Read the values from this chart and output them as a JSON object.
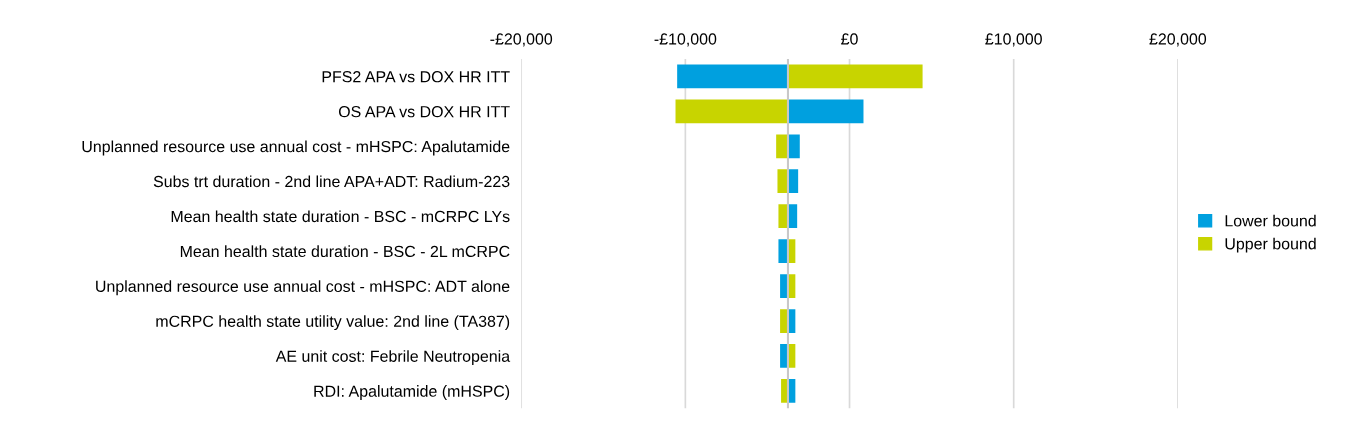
{
  "chart_data": {
    "type": "bar",
    "orientation": "horizontal",
    "categories": [
      "PFS2 APA vs DOX HR ITT",
      "OS APA vs DOX HR ITT",
      "Unplanned resource use annual cost - mHSPC: Apalutamide",
      "Subs trt duration - 2nd line APA+ADT: Radium-223",
      "Mean health state duration - BSC - mCRPC LYs",
      "Mean health state duration - BSC - 2L mCRPC",
      "Unplanned resource use annual cost - mHSPC: ADT alone",
      "mCRPC health state utility value: 2nd line (TA387)",
      "AE unit cost: Febrile Neutropenia",
      "RDI: Apalutamide (mHSPC)"
    ],
    "series": [
      {
        "name": "Lower bound",
        "color": "#00a0df",
        "base": [
          -3750,
          -3750,
          -3750,
          -3750,
          -3750,
          -3750,
          -3750,
          -3750,
          -3750,
          -3750
        ],
        "values": [
          -6750,
          4600,
          720,
          620,
          560,
          -580,
          -480,
          450,
          -480,
          450
        ]
      },
      {
        "name": "Upper bound",
        "color": "#c8d400",
        "base": [
          -3750,
          -3750,
          -3750,
          -3750,
          -3750,
          -3750,
          -3750,
          -3750,
          -3750,
          -3750
        ],
        "values": [
          8200,
          -6850,
          -720,
          -640,
          -580,
          450,
          450,
          -480,
          450,
          -420
        ]
      }
    ],
    "xlim": [
      -20000,
      20000
    ],
    "xticks": [
      {
        "value": -20000,
        "label": "-£20,000"
      },
      {
        "value": -10000,
        "label": "-£10,000"
      },
      {
        "value": 0,
        "label": "£0"
      },
      {
        "value": 10000,
        "label": "£10,000"
      },
      {
        "value": 20000,
        "label": "£20,000"
      }
    ],
    "ref_lines": [
      {
        "axis": "x",
        "value": -3750,
        "color": "#c8c8c8"
      }
    ],
    "grid": "x",
    "legend": "right"
  }
}
